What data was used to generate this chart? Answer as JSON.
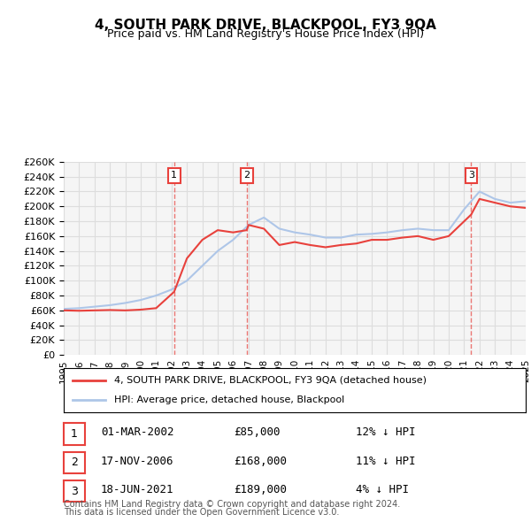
{
  "title": "4, SOUTH PARK DRIVE, BLACKPOOL, FY3 9QA",
  "subtitle": "Price paid vs. HM Land Registry's House Price Index (HPI)",
  "legend_line1": "4, SOUTH PARK DRIVE, BLACKPOOL, FY3 9QA (detached house)",
  "legend_line2": "HPI: Average price, detached house, Blackpool",
  "footer1": "Contains HM Land Registry data © Crown copyright and database right 2024.",
  "footer2": "This data is licensed under the Open Government Licence v3.0.",
  "purchases": [
    {
      "num": 1,
      "date": "01-MAR-2002",
      "price": "£85,000",
      "hpi": "12% ↓ HPI",
      "year": 2002.17
    },
    {
      "num": 2,
      "date": "17-NOV-2006",
      "price": "£168,000",
      "hpi": "11% ↓ HPI",
      "year": 2006.88
    },
    {
      "num": 3,
      "date": "18-JUN-2021",
      "price": "£189,000",
      "hpi": "4% ↓ HPI",
      "year": 2021.46
    }
  ],
  "hpi_line": {
    "years": [
      1995,
      1996,
      1997,
      1998,
      1999,
      2000,
      2001,
      2002,
      2003,
      2004,
      2005,
      2006,
      2007,
      2008,
      2009,
      2010,
      2011,
      2012,
      2013,
      2014,
      2015,
      2016,
      2017,
      2018,
      2019,
      2020,
      2021,
      2022,
      2023,
      2024,
      2025
    ],
    "values": [
      62000,
      63000,
      65000,
      67000,
      70000,
      74000,
      80000,
      88000,
      100000,
      120000,
      140000,
      155000,
      175000,
      185000,
      170000,
      165000,
      162000,
      158000,
      158000,
      162000,
      163000,
      165000,
      168000,
      170000,
      168000,
      168000,
      196000,
      220000,
      210000,
      205000,
      207000
    ],
    "color": "#aec6e8"
  },
  "price_line": {
    "segments": [
      {
        "years": [
          1995,
          1996,
          1997,
          1998,
          1999,
          2000,
          2001,
          2002.17
        ],
        "values": [
          60000,
          59500,
          60000,
          60500,
          60000,
          61000,
          63000,
          85000
        ]
      },
      {
        "years": [
          2002.17,
          2003,
          2004,
          2005,
          2006,
          2006.88
        ],
        "values": [
          85000,
          130000,
          155000,
          168000,
          165000,
          168000
        ]
      },
      {
        "years": [
          2006.88,
          2007,
          2008,
          2009,
          2010,
          2011,
          2012,
          2013,
          2014,
          2015,
          2016,
          2017,
          2018,
          2019,
          2020,
          2021.46
        ],
        "values": [
          168000,
          175000,
          170000,
          148000,
          152000,
          148000,
          145000,
          148000,
          150000,
          155000,
          155000,
          158000,
          160000,
          155000,
          160000,
          189000
        ]
      },
      {
        "years": [
          2021.46,
          2022,
          2023,
          2024,
          2025
        ],
        "values": [
          189000,
          210000,
          205000,
          200000,
          198000
        ]
      }
    ],
    "color": "#e8413c"
  },
  "ylim": [
    0,
    260000
  ],
  "xlim": [
    1995,
    2025
  ],
  "yticks": [
    0,
    20000,
    40000,
    60000,
    80000,
    100000,
    120000,
    140000,
    160000,
    180000,
    200000,
    220000,
    240000,
    260000
  ],
  "xticks": [
    1995,
    1996,
    1997,
    1998,
    1999,
    2000,
    2001,
    2002,
    2003,
    2004,
    2005,
    2006,
    2007,
    2008,
    2009,
    2010,
    2011,
    2012,
    2013,
    2014,
    2015,
    2016,
    2017,
    2018,
    2019,
    2020,
    2021,
    2022,
    2023,
    2024,
    2025
  ],
  "grid_color": "#dddddd",
  "background_color": "#ffffff",
  "plot_bg_color": "#f5f5f5",
  "vline_color": "#e8413c",
  "marker_box_color": "#e8413c"
}
